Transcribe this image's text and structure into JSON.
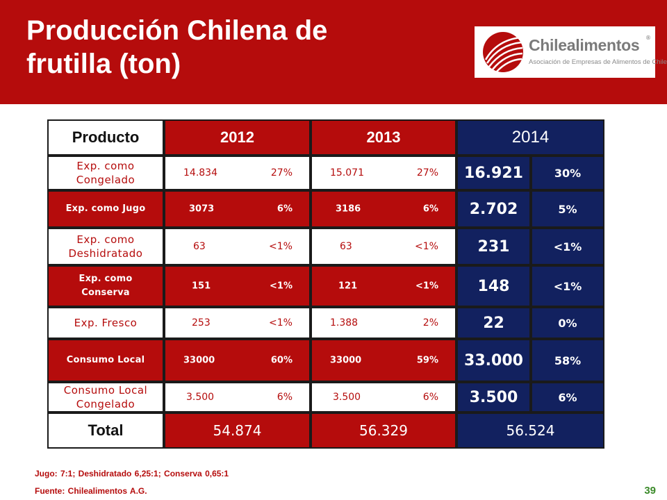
{
  "slide": {
    "title_line1": "Producción Chilena de",
    "title_line2": "frutilla (ton)",
    "page_number": "39"
  },
  "logo": {
    "name": "Chilealimentos",
    "registered": "®",
    "subtitle": "Asociación de Empresas de Alimentos de Chile",
    "icon": "globe-swoosh-icon"
  },
  "colors": {
    "red": "#b50c0c",
    "navy": "#12215f",
    "green": "#3b8a2a"
  },
  "table": {
    "headers": {
      "product": "Producto",
      "y2012": "2012",
      "y2013": "2013",
      "y2014": "2014"
    },
    "rows": [
      {
        "line1": "Exp. como",
        "line2": "Congelado",
        "t2012": "14.834",
        "p2012": "27%",
        "t2013": "15.071",
        "p2013": "27%",
        "t2014": "16.921",
        "p2014": "30%"
      },
      {
        "line1": "Exp. como Jugo",
        "line2": "",
        "t2012": "3073",
        "p2012": "6%",
        "t2013": "3186",
        "p2013": "6%",
        "t2014": "2.702",
        "p2014": "5%"
      },
      {
        "line1": "Exp. como",
        "line2": "Deshidratado",
        "t2012": "63",
        "p2012": "<1%",
        "t2013": "63",
        "p2013": "<1%",
        "t2014": "231",
        "p2014": "<1%"
      },
      {
        "line1": "Exp. como",
        "line2": "Conserva",
        "t2012": "151",
        "p2012": "<1%",
        "t2013": "121",
        "p2013": "<1%",
        "t2014": "148",
        "p2014": "<1%"
      },
      {
        "line1": "Exp. Fresco",
        "line2": "",
        "t2012": "253",
        "p2012": "<1%",
        "t2013": "1.388",
        "p2013": "2%",
        "t2014": "22",
        "p2014": "0%"
      },
      {
        "line1": "Consumo Local",
        "line2": "",
        "t2012": "33000",
        "p2012": "60%",
        "t2013": "33000",
        "p2013": "59%",
        "t2014": "33.000",
        "p2014": "58%"
      },
      {
        "line1": "Consumo Local",
        "line2": "Congelado",
        "t2012": "3.500",
        "p2012": "6%",
        "t2013": "3.500",
        "p2013": "6%",
        "t2014": "3.500",
        "p2014": "6%"
      }
    ],
    "total": {
      "label": "Total",
      "v2012": "54.874",
      "v2013": "56.329",
      "v2014": "56.524"
    }
  },
  "notes": {
    "ratios": "Jugo: 7:1; Deshidratado  6,25:1;  Conserva  0,65:1",
    "source": "Fuente:  Chilealimentos A.G."
  }
}
